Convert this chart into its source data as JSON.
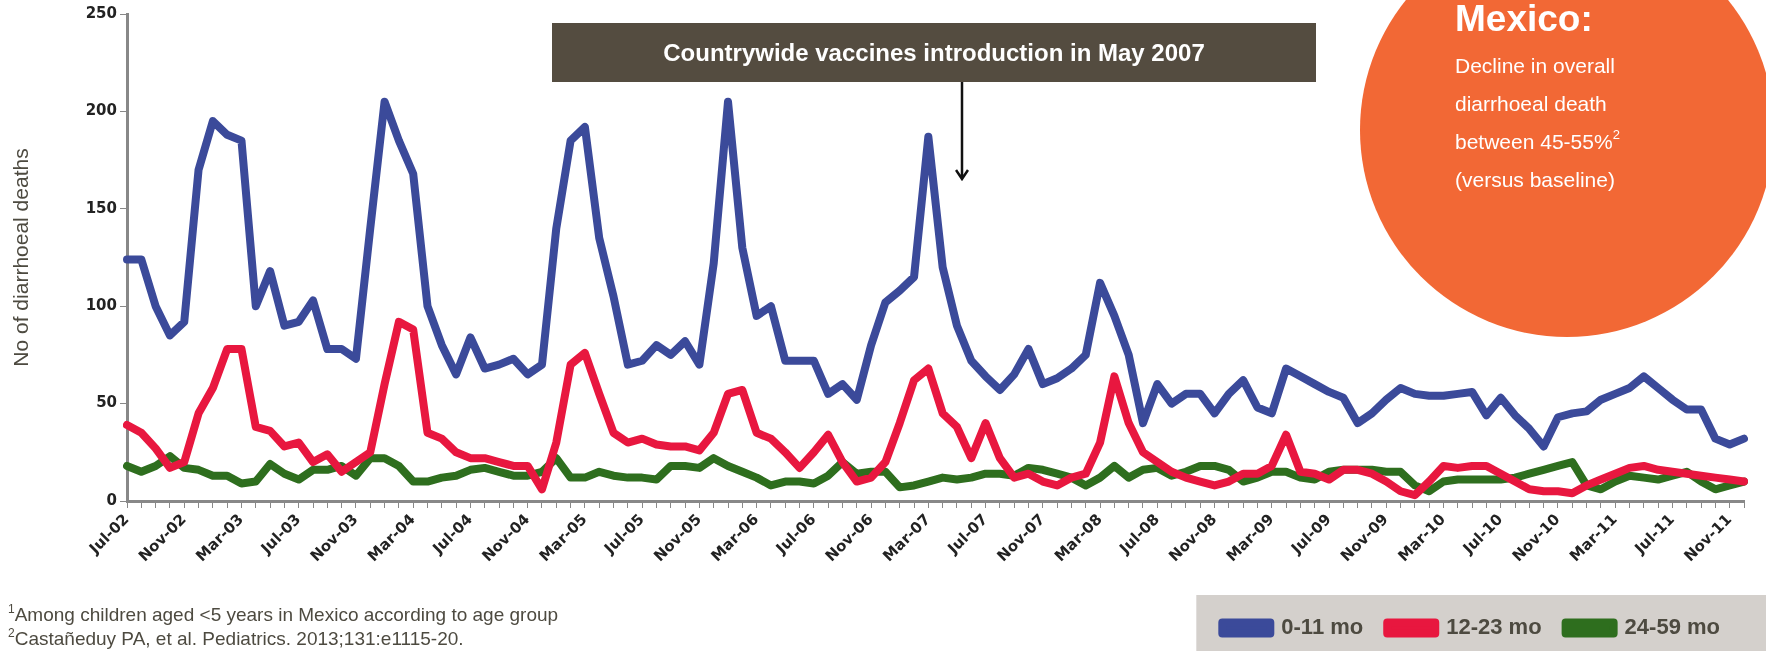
{
  "chart_data": {
    "type": "line",
    "ylabel": "No of diarrhoeal deaths",
    "categories": [
      "Jul-02",
      null,
      null,
      null,
      "Nov-02",
      null,
      null,
      null,
      "Mar-03",
      null,
      null,
      null,
      "Jul-03",
      null,
      null,
      null,
      "Nov-03",
      null,
      null,
      null,
      "Mar-04",
      null,
      null,
      null,
      "Jul-04",
      null,
      null,
      null,
      "Nov-04",
      null,
      null,
      null,
      "Mar-05",
      null,
      null,
      null,
      "Jul-05",
      null,
      null,
      null,
      "Nov-05",
      null,
      null,
      null,
      "Mar-06",
      null,
      null,
      null,
      "Jul-06",
      null,
      null,
      null,
      "Nov-06",
      null,
      null,
      null,
      "Mar-07",
      null,
      null,
      null,
      "Jul-07",
      null,
      null,
      null,
      "Nov-07",
      null,
      null,
      null,
      "Mar-08",
      null,
      null,
      null,
      "Jul-08",
      null,
      null,
      null,
      "Nov-08",
      null,
      null,
      null,
      "Mar-09",
      null,
      null,
      null,
      "Jul-09",
      null,
      null,
      null,
      "Nov-09",
      null,
      null,
      null,
      "Mar-10",
      null,
      null,
      null,
      "Jul-10",
      null,
      null,
      null,
      "Nov-10",
      null,
      null,
      null,
      "Mar-11",
      null,
      null,
      null,
      "Jul-11",
      null,
      null,
      null,
      "Nov-11",
      null
    ],
    "series": [
      {
        "name": "0-11 mo",
        "color": "#3b4a9a",
        "values": [
          124,
          124,
          100,
          85,
          92,
          170,
          195,
          188,
          185,
          100,
          118,
          90,
          92,
          103,
          78,
          78,
          73,
          140,
          205,
          185,
          168,
          100,
          80,
          65,
          84,
          68,
          70,
          73,
          65,
          70,
          140,
          185,
          192,
          135,
          105,
          70,
          72,
          80,
          75,
          82,
          70,
          122,
          205,
          130,
          95,
          100,
          72,
          72,
          72,
          55,
          60,
          52,
          80,
          102,
          108,
          115,
          187,
          120,
          90,
          72,
          64,
          57,
          65,
          78,
          60,
          63,
          68,
          75,
          112,
          95,
          75,
          40,
          60,
          50,
          55,
          55,
          45,
          55,
          62,
          48,
          45,
          68,
          64,
          60,
          56,
          53,
          40,
          45,
          52,
          58,
          55,
          54,
          54,
          55,
          56,
          44,
          53,
          44,
          37,
          28,
          43,
          45,
          46,
          52,
          55,
          58,
          64,
          58,
          52,
          47,
          47,
          32,
          29,
          32
        ]
      },
      {
        "name": "12-23 mo",
        "color": "#e8173f",
        "values": [
          39,
          35,
          27,
          17,
          20,
          45,
          58,
          78,
          78,
          38,
          36,
          28,
          30,
          20,
          24,
          15,
          20,
          25,
          60,
          92,
          88,
          35,
          32,
          25,
          22,
          22,
          20,
          18,
          18,
          6,
          30,
          70,
          76,
          55,
          35,
          30,
          32,
          29,
          28,
          28,
          26,
          35,
          55,
          57,
          35,
          32,
          25,
          17,
          25,
          34,
          20,
          10,
          12,
          20,
          40,
          62,
          68,
          45,
          38,
          22,
          40,
          22,
          12,
          14,
          10,
          8,
          12,
          14,
          30,
          64,
          40,
          25,
          20,
          15,
          12,
          10,
          8,
          10,
          14,
          14,
          18,
          34,
          15,
          14,
          11,
          16,
          16,
          14,
          10,
          5,
          3,
          10,
          18,
          17,
          18,
          18,
          14,
          10,
          6,
          5,
          5,
          4,
          8,
          11,
          14,
          17,
          18,
          16,
          15,
          14,
          13,
          12,
          11,
          10
        ]
      },
      {
        "name": "24-59 mo",
        "color": "#2e6e1e",
        "values": [
          18,
          15,
          18,
          23,
          17,
          16,
          13,
          13,
          9,
          10,
          19,
          14,
          11,
          16,
          16,
          18,
          13,
          22,
          22,
          18,
          10,
          10,
          12,
          13,
          16,
          17,
          15,
          13,
          13,
          15,
          22,
          12,
          12,
          15,
          13,
          12,
          12,
          11,
          18,
          18,
          17,
          22,
          18,
          15,
          12,
          8,
          10,
          10,
          9,
          13,
          20,
          14,
          15,
          15,
          7,
          8,
          10,
          12,
          11,
          12,
          14,
          14,
          13,
          17,
          16,
          14,
          12,
          8,
          12,
          18,
          12,
          16,
          17,
          13,
          15,
          18,
          18,
          16,
          10,
          12,
          15,
          15,
          12,
          11,
          15,
          16,
          16,
          16,
          15,
          15,
          8,
          5,
          10,
          11,
          11,
          11,
          11,
          12,
          14,
          16,
          18,
          20,
          8,
          6,
          10,
          13,
          12,
          11,
          13,
          15,
          10,
          6,
          8,
          10
        ]
      }
    ],
    "ylim": [
      0,
      250
    ],
    "yticks": [
      0,
      50,
      100,
      150,
      200,
      250
    ],
    "grid": false,
    "marker": "none",
    "legend": "bottom right",
    "annotations": [
      "Countrywide vaccines introduction in May 2007",
      "Mexico:",
      "Decline in overall diarrhoeal death between 45-55%$^{2}$ (versus baseline)",
      "$^{1}$Among children aged <5 years in Mexico according to age group",
      "$^{2}$Castañeduy PA, et al. Pediatrics. 2013;131:e1115-20."
    ]
  }
}
